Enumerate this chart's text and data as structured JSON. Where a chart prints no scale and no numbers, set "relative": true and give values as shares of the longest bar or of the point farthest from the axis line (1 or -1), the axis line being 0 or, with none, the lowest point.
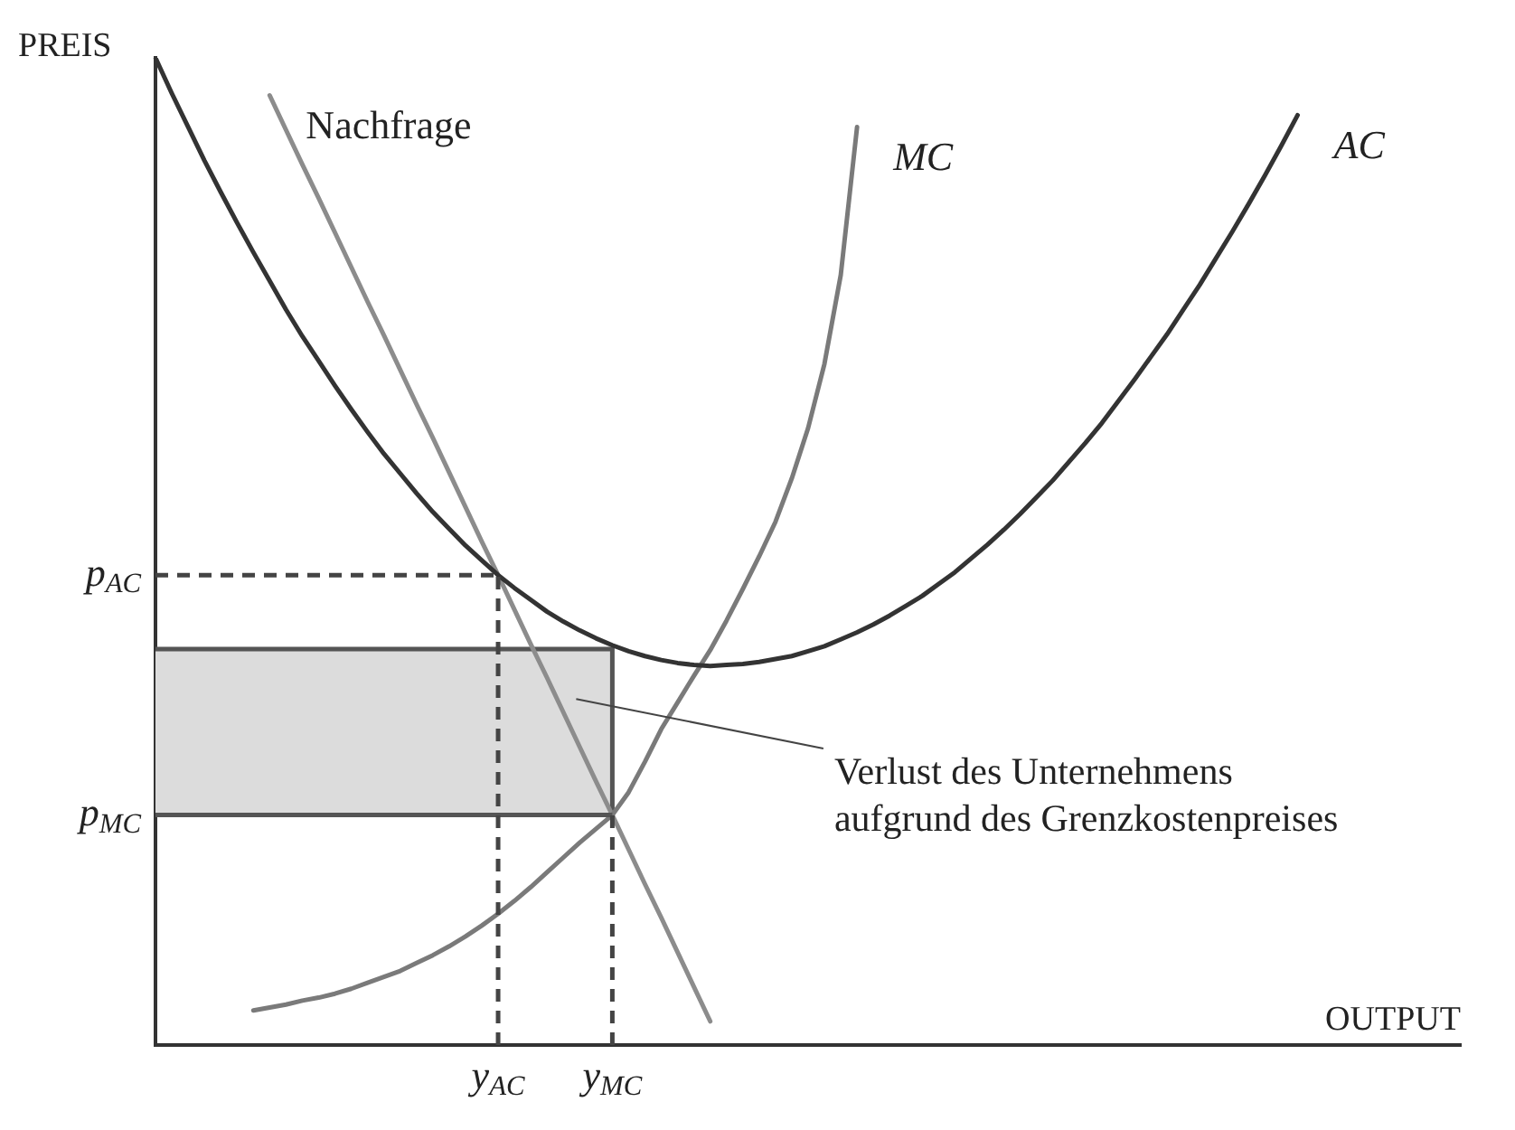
{
  "chart_data": {
    "type": "line",
    "relative": true,
    "xlabel": "OUTPUT",
    "ylabel": "PREIS",
    "grid": false,
    "legend": false,
    "marker": "none",
    "categories": [
      null,
      null,
      null,
      null,
      null,
      null,
      null,
      null,
      null,
      null,
      null,
      null,
      null,
      null,
      null,
      null,
      null,
      null,
      null,
      null,
      null,
      "y$_{AC}$",
      null,
      null,
      null,
      null,
      null,
      null,
      "y$_{MC}$",
      null,
      null,
      null,
      null,
      null,
      null,
      null,
      null,
      null,
      null,
      null,
      null,
      null,
      null,
      null,
      null,
      null,
      null,
      null,
      null,
      null,
      null,
      null,
      null,
      null,
      null,
      null,
      null,
      null,
      null,
      null,
      null,
      null,
      null,
      null,
      null,
      null,
      null,
      null,
      null,
      null,
      null,
      null,
      null,
      null,
      null,
      null,
      null,
      null,
      null,
      null,
      null
    ],
    "series": [
      {
        "name": "AC",
        "color": "#333333",
        "values": [
          1.0,
          0.964,
          0.93,
          0.896,
          0.864,
          0.833,
          0.803,
          0.774,
          0.745,
          0.718,
          0.693,
          0.668,
          0.644,
          0.621,
          0.599,
          0.579,
          0.559,
          0.54,
          0.523,
          0.506,
          0.491,
          0.476,
          0.463,
          0.451,
          0.439,
          0.429,
          0.42,
          0.412,
          0.405,
          0.399,
          0.394,
          0.39,
          0.387,
          0.385,
          0.384,
          0.385,
          0.386,
          0.388,
          0.391,
          0.394,
          0.399,
          0.404,
          0.411,
          0.418,
          0.426,
          0.435,
          0.445,
          0.455,
          0.467,
          0.479,
          0.493,
          0.507,
          0.522,
          0.538,
          0.555,
          0.572,
          0.591,
          0.61,
          0.63,
          0.652,
          0.674,
          0.697,
          0.72,
          0.745,
          0.77,
          0.797,
          0.824,
          0.852,
          0.881,
          0.911,
          0.942,
          null,
          null,
          null,
          null,
          null,
          null,
          null,
          null,
          null,
          null
        ]
      },
      {
        "name": "MC",
        "color": "#7a7a7a",
        "values": [
          null,
          null,
          null,
          null,
          null,
          null,
          0.035,
          0.038,
          0.041,
          0.045,
          0.048,
          0.052,
          0.057,
          0.063,
          0.069,
          0.075,
          0.083,
          0.091,
          0.1,
          0.11,
          0.121,
          0.133,
          0.146,
          0.16,
          0.175,
          0.19,
          0.205,
          0.219,
          0.233,
          0.256,
          0.287,
          0.32,
          0.347,
          0.374,
          0.4,
          0.43,
          0.462,
          0.495,
          0.53,
          0.574,
          0.625,
          0.69,
          0.78,
          0.93,
          null,
          null,
          null,
          null,
          null,
          null,
          null,
          null,
          null,
          null,
          null,
          null,
          null,
          null,
          null,
          null,
          null,
          null,
          null,
          null,
          null,
          null,
          null,
          null,
          null,
          null,
          null,
          null,
          null,
          null,
          null,
          null,
          null,
          null,
          null,
          null,
          null
        ]
      },
      {
        "name": "Nachfrage",
        "color": "#8c8c8c",
        "values": [
          null,
          null,
          null,
          null,
          null,
          null,
          null,
          0.962,
          0.927,
          0.892,
          0.858,
          0.823,
          0.788,
          0.753,
          0.719,
          0.684,
          0.649,
          0.615,
          0.58,
          0.545,
          0.51,
          0.476,
          0.441,
          0.406,
          0.372,
          0.337,
          0.302,
          0.267,
          0.233,
          0.198,
          0.163,
          0.129,
          0.094,
          0.059,
          0.024,
          null,
          null,
          null,
          null,
          null,
          null,
          null,
          null,
          null,
          null,
          null,
          null,
          null,
          null,
          null,
          null,
          null,
          null,
          null,
          null,
          null,
          null,
          null,
          null,
          null,
          null,
          null,
          null,
          null,
          null,
          null,
          null,
          null,
          null,
          null,
          null,
          null,
          null,
          null,
          null,
          null,
          null,
          null,
          null,
          null,
          null
        ]
      }
    ],
    "bands": [
      {
        "axis": "y",
        "from": 0.233,
        "to": 0.401,
        "color": "#dcdcdc"
      }
    ],
    "ref_lines": [
      {
        "axis": "y",
        "value": 0.476,
        "label": "p$_{AC}$",
        "line_style": "dashed",
        "color": "#444444"
      },
      {
        "axis": "y",
        "value": 0.233,
        "label": "p$_{MC}$",
        "line_style": "solid",
        "color": "#555555"
      },
      {
        "axis": "x",
        "value": "y$_{AC}$",
        "line_style": "dashed",
        "color": "#444444"
      },
      {
        "axis": "x",
        "value": "y$_{MC}$",
        "line_style": "dashed",
        "color": "#444444"
      }
    ],
    "annotations": [
      "Verlust des Unternehmens\naufgrund des Grenzkostenpreises"
    ]
  }
}
